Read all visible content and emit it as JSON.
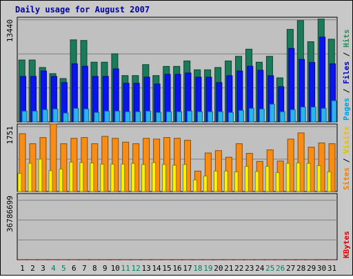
{
  "chart_data": {
    "type": "bar",
    "title": "Daily usage for August 2007",
    "categories": [
      "1",
      "2",
      "3",
      "4",
      "5",
      "6",
      "7",
      "8",
      "9",
      "10",
      "11",
      "12",
      "13",
      "14",
      "15",
      "16",
      "17",
      "18",
      "19",
      "20",
      "21",
      "22",
      "23",
      "24",
      "25",
      "26",
      "27",
      "28",
      "29",
      "30",
      "31"
    ],
    "weekend_days": [
      "4",
      "5",
      "11",
      "12",
      "18",
      "19",
      "25",
      "26"
    ],
    "panels": [
      {
        "id": "hits",
        "ymax_label": "13440",
        "ymax": 13440,
        "right_label": [
          {
            "text": "Pages",
            "color": "#00a0e0"
          },
          {
            "text": " / ",
            "color": "#000000"
          },
          {
            "text": "Files",
            "color": "#0000c0"
          },
          {
            "text": " / ",
            "color": "#000000"
          },
          {
            "text": "Hits",
            "color": "#2e8b57"
          }
        ],
        "series": [
          {
            "name": "Hits",
            "color": "#1b7a5a",
            "values": [
              7950,
              7950,
              6990,
              6200,
              5570,
              10540,
              10460,
              7670,
              7670,
              8750,
              5950,
              5950,
              7360,
              5950,
              7130,
              7130,
              7830,
              6690,
              6690,
              6990,
              7830,
              8420,
              9340,
              7670,
              8420,
              5660,
              11880,
              13020,
              10300,
              13200,
              10620
            ]
          },
          {
            "name": "Files",
            "color": "#0a14ef",
            "values": [
              5840,
              5840,
              6540,
              5840,
              5050,
              7460,
              7150,
              5840,
              5840,
              6810,
              4960,
              4960,
              5750,
              4870,
              6110,
              6110,
              6280,
              5750,
              5750,
              5050,
              5930,
              6540,
              7150,
              6630,
              5930,
              4520,
              9430,
              8030,
              7630,
              10890,
              7460
            ]
          },
          {
            "name": "Pages",
            "color": "#28b4ef",
            "values": [
              1390,
              1390,
              1570,
              1660,
              1140,
              1740,
              1660,
              1220,
              1390,
              1390,
              1310,
              1310,
              1390,
              1220,
              1310,
              1310,
              1390,
              1310,
              1310,
              1310,
              1220,
              1480,
              1740,
              1660,
              2280,
              1310,
              1570,
              1910,
              1910,
              1740,
              2720
            ]
          }
        ]
      },
      {
        "id": "visits",
        "ymax_label": "1751",
        "ymax": 1751,
        "right_label": [
          {
            "text": "Sites",
            "color": "#f08000"
          },
          {
            "text": " / ",
            "color": "#000000"
          },
          {
            "text": "Visits",
            "color": "#e0c000"
          }
        ],
        "series": [
          {
            "name": "Visits",
            "color": "#f88c14",
            "values": [
              1500,
              1240,
              1400,
              1751,
              1240,
              1380,
              1400,
              1240,
              1430,
              1380,
              1280,
              1240,
              1380,
              1360,
              1400,
              1380,
              1330,
              530,
              1000,
              1060,
              890,
              1240,
              990,
              780,
              1080,
              790,
              1360,
              1520,
              1150,
              1260,
              1240
            ]
          },
          {
            "name": "Sites",
            "color": "#fcf200",
            "values": [
              470,
              730,
              840,
              540,
              580,
              760,
              750,
              740,
              710,
              710,
              710,
              730,
              700,
              750,
              700,
              680,
              700,
              300,
              400,
              530,
              530,
              510,
              650,
              520,
              650,
              490,
              730,
              740,
              730,
              670,
              510
            ]
          }
        ]
      },
      {
        "id": "kbytes",
        "ymax_label": "36786699",
        "ymax": 36786699,
        "right_label": [
          {
            "text": "KBytes",
            "color": "#e00000"
          }
        ],
        "series": [
          {
            "name": "KBytes",
            "color": "#ff0000",
            "values": [
              28700,
              31300,
              18800,
              24300,
              14000,
              17500,
              21500,
              20000,
              25400,
              32100,
              16100,
              13300,
              19500,
              16700,
              21500,
              18800,
              18800,
              17500,
              11100,
              19500,
              10400,
              14700,
              12800,
              16100,
              11100,
              8100,
              16100,
              25400,
              13300,
              31300,
              10400
            ]
          }
        ]
      }
    ]
  }
}
